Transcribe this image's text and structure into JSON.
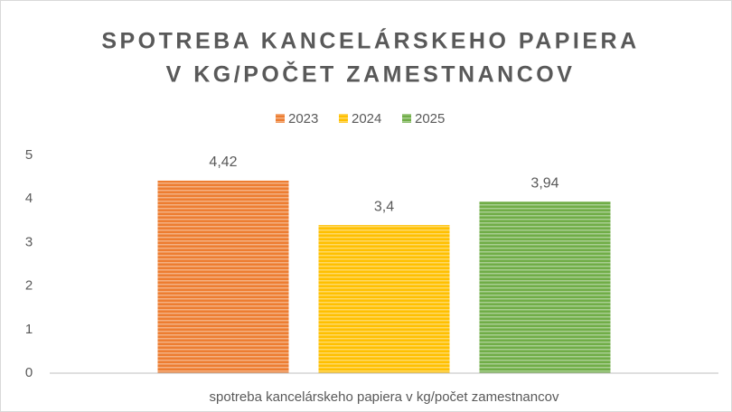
{
  "chart_data": {
    "type": "bar",
    "title": [
      "SPOTREBA KANCELÁRSKEHO PAPIERA",
      "V KG/POČET ZAMESTNANCOV"
    ],
    "categories": [
      "spotreba kancelárskeho papiera v kg/počet zamestnancov"
    ],
    "series": [
      {
        "name": "2023",
        "color": "#ed7d31",
        "values": [
          4.42
        ],
        "value_labels": [
          "4,42"
        ]
      },
      {
        "name": "2024",
        "color": "#ffc000",
        "values": [
          3.4
        ],
        "value_labels": [
          "3,4"
        ]
      },
      {
        "name": "2025",
        "color": "#70ad47",
        "values": [
          3.94
        ],
        "value_labels": [
          "3,94"
        ]
      }
    ],
    "ylim": [
      0,
      5
    ],
    "yticks": [
      0,
      1,
      2,
      3,
      4,
      5
    ],
    "grid": false,
    "legend": "top"
  }
}
